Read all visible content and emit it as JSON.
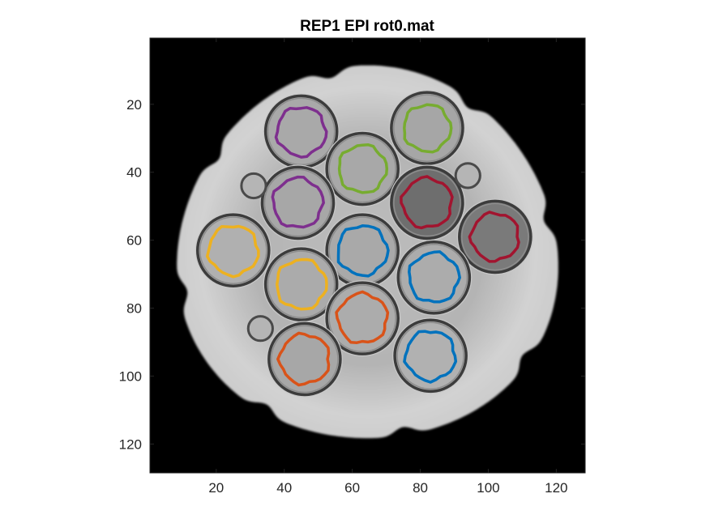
{
  "figure": {
    "title": "REP1 EPI rot0.mat",
    "image_description": "Grayscale MRI axial slice of a phantom with 13 vials; colored ROI outlines drawn on vials",
    "background_color": "#000000",
    "roi_line_width_hint": "thick",
    "axes": {
      "x_range": [
        0.5,
        128.5
      ],
      "y_range": [
        0.5,
        128.5
      ],
      "y_direction": "reverse",
      "x_ticks": [
        20,
        40,
        60,
        80,
        100,
        120
      ],
      "y_ticks": [
        20,
        40,
        60,
        80,
        100,
        120
      ],
      "box": true
    }
  },
  "vials": [
    {
      "cx": 45,
      "cy": 28,
      "r": 10.5,
      "shade": "#a9a9a9"
    },
    {
      "cx": 82,
      "cy": 27,
      "r": 10.5,
      "shade": "#a6a6a6"
    },
    {
      "cx": 63,
      "cy": 39,
      "r": 10.5,
      "shade": "#a8a8a8"
    },
    {
      "cx": 44,
      "cy": 49,
      "r": 10.5,
      "shade": "#a7a7a7"
    },
    {
      "cx": 82,
      "cy": 49,
      "r": 10.5,
      "shade": "#6e6e6e"
    },
    {
      "cx": 102,
      "cy": 59,
      "r": 10.5,
      "shade": "#7a7a7a"
    },
    {
      "cx": 25,
      "cy": 63,
      "r": 10.5,
      "shade": "#b0b0b0"
    },
    {
      "cx": 63,
      "cy": 63,
      "r": 10.5,
      "shade": "#a9a9a9"
    },
    {
      "cx": 45,
      "cy": 73,
      "r": 10.5,
      "shade": "#ababab"
    },
    {
      "cx": 84,
      "cy": 71,
      "r": 10.5,
      "shade": "#acacac"
    },
    {
      "cx": 63,
      "cy": 83,
      "r": 10.5,
      "shade": "#acacac"
    },
    {
      "cx": 46,
      "cy": 95,
      "r": 10.5,
      "shade": "#a7a7a7"
    },
    {
      "cx": 83,
      "cy": 94,
      "r": 10.5,
      "shade": "#b1b1b1"
    }
  ],
  "small_bubbles": [
    {
      "cx": 31,
      "cy": 44,
      "r": 3.6
    },
    {
      "cx": 94,
      "cy": 41,
      "r": 3.6
    },
    {
      "cx": 33,
      "cy": 86,
      "r": 3.6
    }
  ],
  "rois": [
    {
      "label": "roi-1",
      "color": "#7E2F8E",
      "cx": 45,
      "cy": 28,
      "r": 7.2
    },
    {
      "label": "roi-2",
      "color": "#77AC30",
      "cx": 82,
      "cy": 27,
      "r": 6.9
    },
    {
      "label": "roi-3",
      "color": "#77AC30",
      "cx": 63,
      "cy": 39,
      "r": 7.0
    },
    {
      "label": "roi-4",
      "color": "#7E2F8E",
      "cx": 44,
      "cy": 49,
      "r": 7.3
    },
    {
      "label": "roi-5",
      "color": "#A2142F",
      "cx": 82,
      "cy": 49,
      "r": 7.3
    },
    {
      "label": "roi-6",
      "color": "#A2142F",
      "cx": 102,
      "cy": 59,
      "r": 7.0
    },
    {
      "label": "roi-7",
      "color": "#EDB120",
      "cx": 25,
      "cy": 63,
      "r": 7.3
    },
    {
      "label": "roi-8",
      "color": "#0072BD",
      "cx": 63,
      "cy": 63,
      "r": 7.3
    },
    {
      "label": "roi-9",
      "color": "#EDB120",
      "cx": 45,
      "cy": 73,
      "r": 7.3
    },
    {
      "label": "roi-10",
      "color": "#0072BD",
      "cx": 84,
      "cy": 71,
      "r": 7.3
    },
    {
      "label": "roi-11",
      "color": "#D95319",
      "cx": 63,
      "cy": 83,
      "r": 7.3
    },
    {
      "label": "roi-12",
      "color": "#D95319",
      "cx": 46,
      "cy": 95,
      "r": 7.3
    },
    {
      "label": "roi-13",
      "color": "#0072BD",
      "cx": 83,
      "cy": 94,
      "r": 7.3
    }
  ]
}
